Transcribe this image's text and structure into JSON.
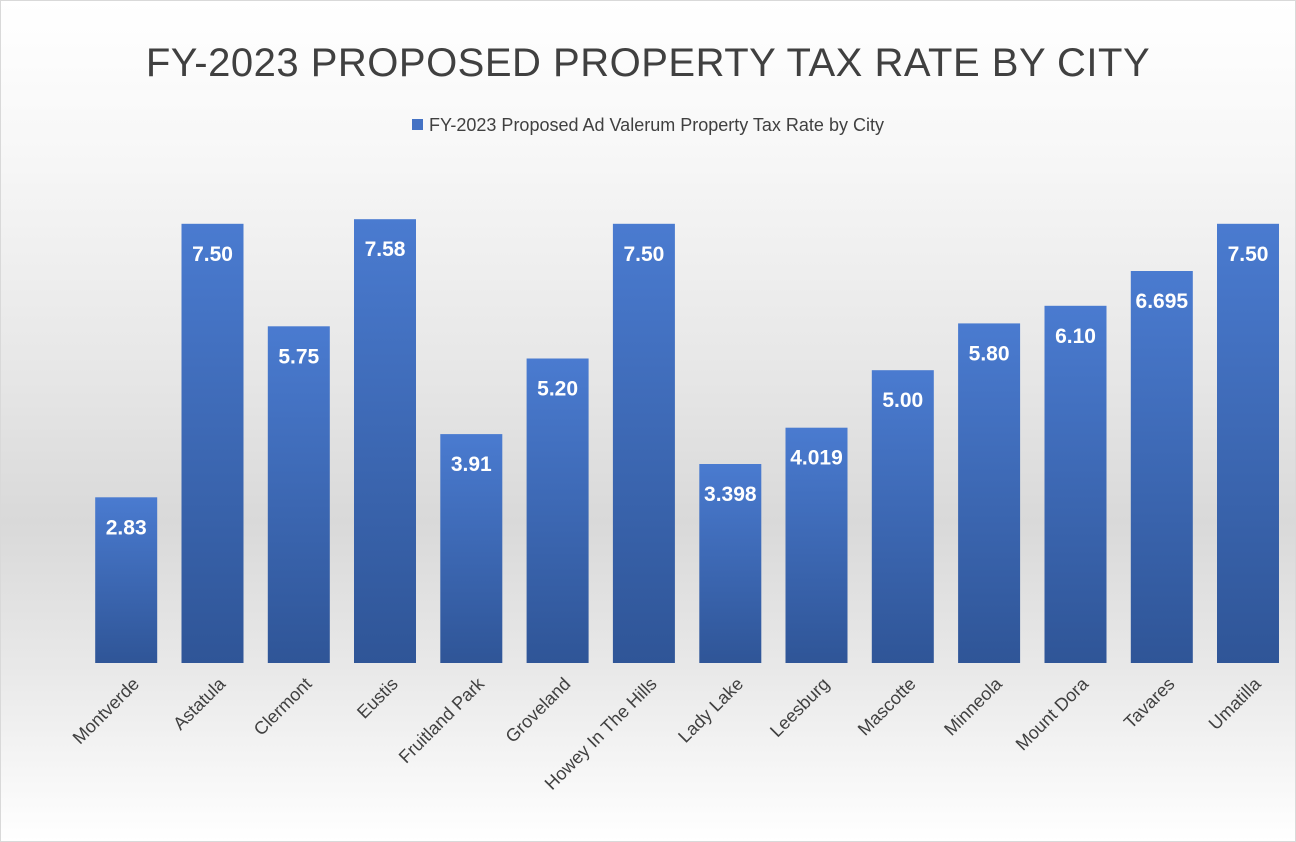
{
  "chart_data": {
    "type": "bar",
    "title": "FY-2023 PROPOSED PROPERTY TAX RATE BY CITY",
    "xlabel": "",
    "ylabel": "",
    "legend": {
      "position": "top",
      "entries": [
        "FY-2023 Proposed Ad Valerum Property Tax Rate by City"
      ]
    },
    "grid": false,
    "ylim": [
      0,
      8.3
    ],
    "series": [
      {
        "name": "FY-2023 Proposed Ad Valerum Property Tax Rate by City",
        "color": "#4472c4",
        "values": [
          2.83,
          7.5,
          5.75,
          7.58,
          3.91,
          5.2,
          7.5,
          3.398,
          4.019,
          5.0,
          5.8,
          6.1,
          6.695,
          7.5
        ]
      }
    ],
    "categories": [
      "Montverde",
      "Astatula",
      "Clermont",
      "Eustis",
      "Fruitland Park",
      "Groveland",
      "Howey In The Hills",
      "Lady Lake",
      "Leesburg",
      "Mascotte",
      "Minneola",
      "Mount Dora",
      "Tavares",
      "Umatilla"
    ],
    "data_labels": [
      "2.83",
      "7.50",
      "5.75",
      "7.58",
      "3.91",
      "5.20",
      "7.50",
      "3.398",
      "4.019",
      "5.00",
      "5.80",
      "6.10",
      "6.695",
      "7.50"
    ]
  }
}
